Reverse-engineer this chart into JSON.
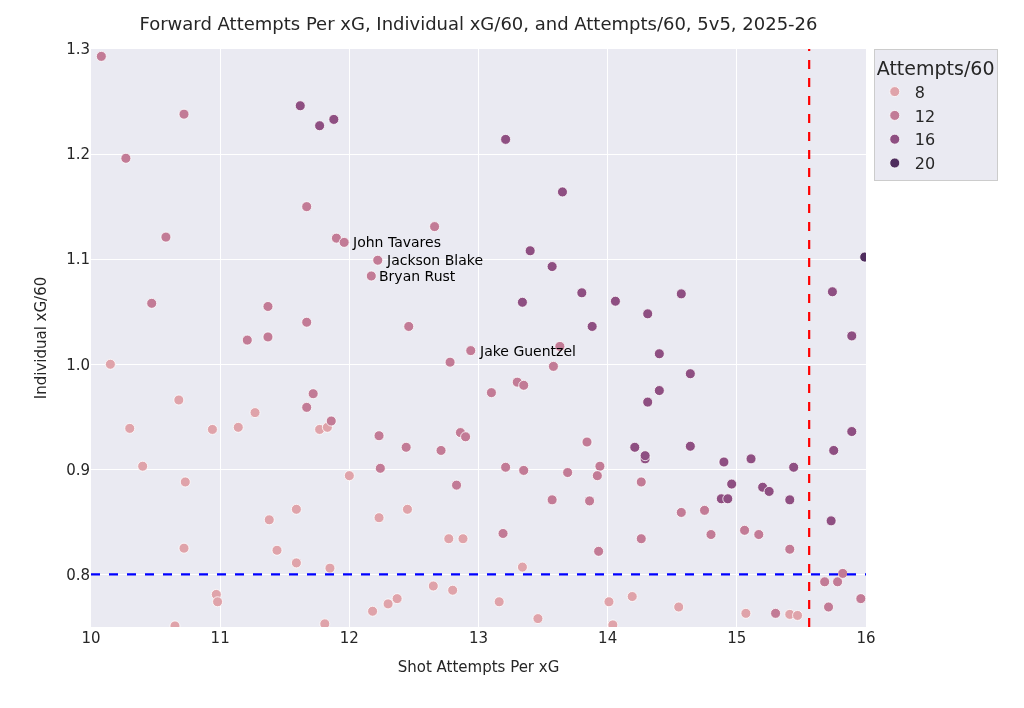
{
  "chart_data": {
    "type": "scatter",
    "title": "Forward Attempts Per xG, Individual xG/60, and Attempts/60, 5v5, 2025-26",
    "xlabel": "Shot Attempts Per xG",
    "ylabel": "Individual xG/60",
    "legend_title": "Attempts/60",
    "xlim": [
      10,
      16
    ],
    "ylim": [
      0.75,
      1.3
    ],
    "xticks": [
      10,
      11,
      12,
      13,
      14,
      15,
      16
    ],
    "yticks": [
      0.8,
      0.9,
      {
        "value": 1.0,
        "label": "1.0"
      },
      1.1,
      1.2,
      1.3
    ],
    "grid": true,
    "legend": "top right",
    "marker": "circle",
    "series": [
      {
        "name": "8",
        "color": "#dfa3aa",
        "x": [
          10.15,
          10.68,
          10.3,
          10.4,
          10.73,
          10.72,
          10.94,
          11.14,
          11.27,
          11.77,
          11.83,
          12.0,
          11.38,
          11.59,
          11.44,
          11.59,
          11.85,
          10.97,
          10.98,
          10.65,
          11.81,
          12.23,
          12.45,
          12.77,
          12.88,
          12.65,
          12.8,
          12.3,
          12.37,
          12.18,
          13.16,
          13.46,
          14.01,
          14.04,
          14.19,
          14.55,
          15.07,
          15.41,
          15.47,
          13.34
        ],
        "values": [
          1.0,
          0.966,
          0.939,
          0.903,
          0.888,
          0.825,
          0.938,
          0.94,
          0.954,
          0.938,
          0.94,
          0.894,
          0.852,
          0.862,
          0.823,
          0.811,
          0.806,
          0.781,
          0.774,
          0.751,
          0.753,
          0.854,
          0.862,
          0.834,
          0.834,
          0.789,
          0.785,
          0.772,
          0.777,
          0.765,
          0.774,
          0.758,
          0.774,
          0.752,
          0.779,
          0.769,
          0.763,
          0.762,
          0.761,
          0.807
        ]
      },
      {
        "name": "12",
        "color": "#c27b96",
        "x": [
          10.08,
          10.72,
          10.27,
          10.58,
          10.47,
          11.67,
          11.9,
          11.96,
          11.37,
          11.21,
          11.37,
          11.67,
          12.22,
          12.17,
          12.66,
          12.46,
          12.94,
          13.63,
          12.78,
          13.58,
          13.3,
          13.35,
          13.1,
          11.67,
          11.72,
          11.86,
          12.23,
          12.24,
          12.44,
          12.71,
          12.86,
          12.9,
          12.83,
          13.21,
          13.35,
          13.84,
          13.69,
          13.94,
          13.92,
          13.57,
          13.86,
          13.19,
          13.93,
          14.26,
          14.57,
          14.75,
          14.8,
          15.06,
          15.17,
          15.41,
          14.26,
          15.68,
          15.78,
          15.82,
          15.96,
          15.71,
          15.3
        ],
        "values": [
          1.293,
          1.238,
          1.196,
          1.121,
          1.058,
          1.15,
          1.12,
          1.116,
          1.055,
          1.023,
          1.026,
          1.04,
          1.099,
          1.084,
          1.131,
          1.036,
          1.013,
          1.017,
          1.002,
          0.998,
          0.983,
          0.98,
          0.973,
          0.959,
          0.972,
          0.946,
          0.932,
          0.901,
          0.921,
          0.918,
          0.935,
          0.931,
          0.885,
          0.902,
          0.899,
          0.926,
          0.897,
          0.903,
          0.894,
          0.871,
          0.87,
          0.839,
          0.822,
          0.888,
          0.859,
          0.861,
          0.838,
          0.842,
          0.838,
          0.824,
          0.834,
          0.793,
          0.793,
          0.801,
          0.777,
          0.769,
          0.763
        ]
      },
      {
        "name": "16",
        "color": "#8e4f82",
        "x": [
          11.62,
          11.77,
          11.88,
          13.21,
          13.65,
          13.4,
          13.57,
          13.34,
          13.8,
          14.06,
          14.31,
          14.57,
          13.88,
          14.4,
          14.64,
          14.31,
          14.4,
          14.21,
          14.29,
          14.29,
          14.64,
          14.9,
          15.11,
          15.44,
          14.96,
          14.88,
          14.93,
          15.2,
          15.25,
          15.41,
          15.75,
          15.73,
          15.89,
          15.89,
          15.74
        ],
        "values": [
          1.246,
          1.227,
          1.233,
          1.214,
          1.164,
          1.108,
          1.093,
          1.059,
          1.068,
          1.06,
          1.048,
          1.067,
          1.036,
          1.01,
          0.991,
          0.964,
          0.975,
          0.921,
          0.91,
          0.913,
          0.922,
          0.907,
          0.91,
          0.902,
          0.886,
          0.872,
          0.872,
          0.883,
          0.879,
          0.871,
          0.918,
          0.851,
          0.936,
          1.027,
          1.069
        ]
      },
      {
        "name": "20",
        "color": "#4f2d5e",
        "x": [
          15.99
        ],
        "values": [
          1.102
        ]
      }
    ],
    "ref_lines": [
      {
        "axis": "x",
        "value": 15.56,
        "color": "#ff0000",
        "line_style": "dashed"
      },
      {
        "axis": "y",
        "value": 0.8,
        "color": "#0000ff",
        "line_style": "dashed"
      }
    ],
    "annotations": [
      {
        "text": "John Tavares",
        "x": 11.96,
        "y": 1.116
      },
      {
        "text": "Jackson Blake",
        "x": 12.22,
        "y": 1.099
      },
      {
        "text": "Bryan Rust",
        "x": 12.17,
        "y": 1.084
      },
      {
        "text": "Jake Guentzel",
        "x": 12.94,
        "y": 1.013
      }
    ]
  }
}
